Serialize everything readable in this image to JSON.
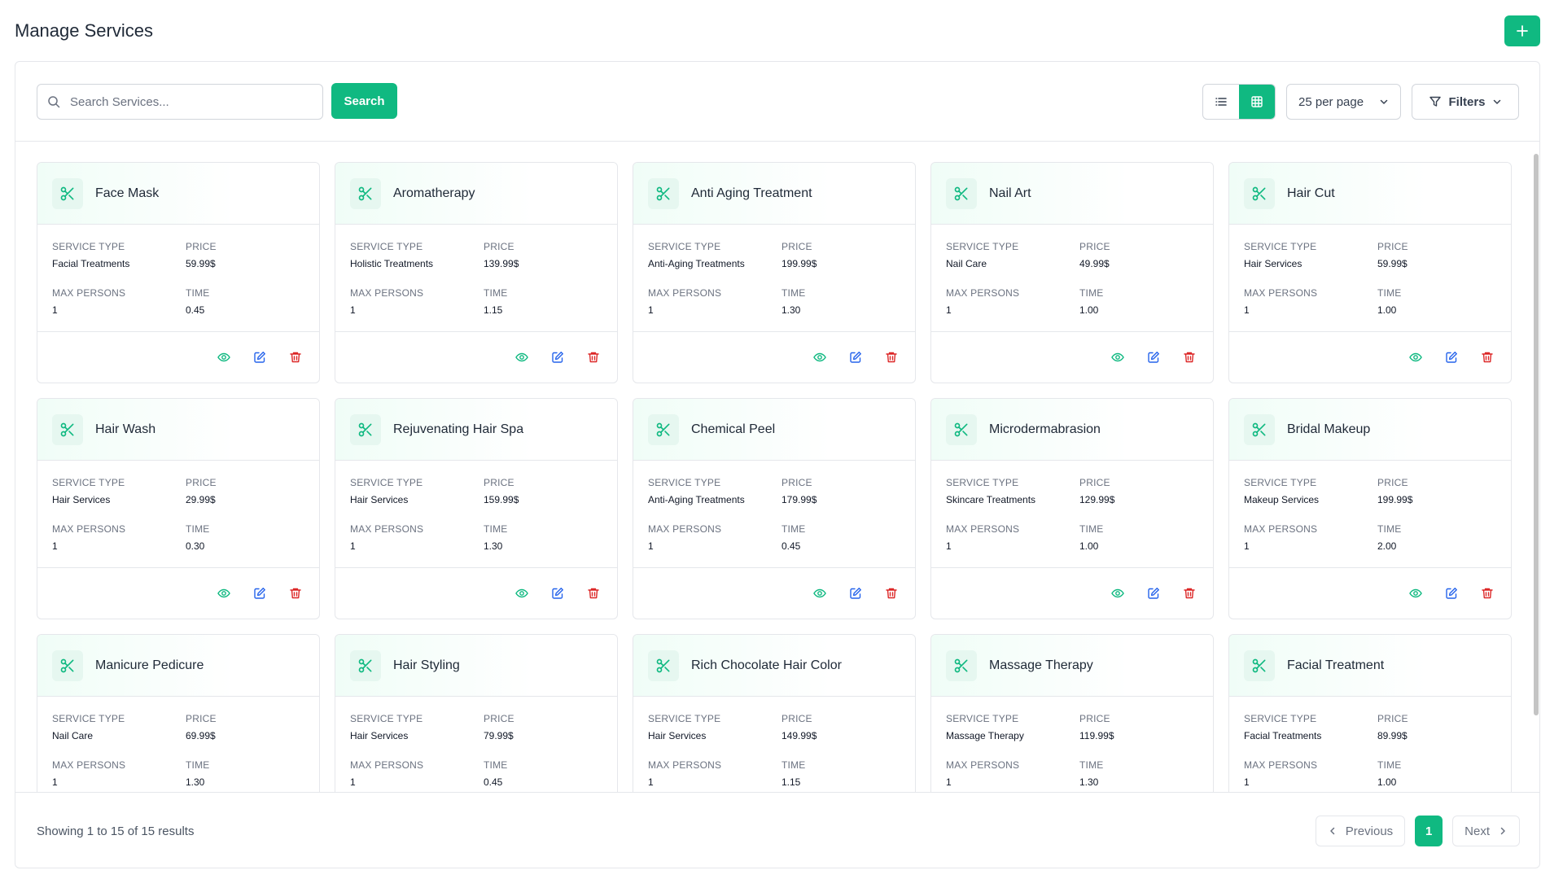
{
  "page": {
    "title": "Manage Services",
    "add_icon": "plus-icon"
  },
  "toolbar": {
    "search_placeholder": "Search Services...",
    "search_value": "",
    "search_button": "Search",
    "view_mode": "grid",
    "per_page": "25 per page",
    "filters_label": "Filters"
  },
  "labels": {
    "service_type": "SERVICE TYPE",
    "price": "PRICE",
    "max_persons": "MAX PERSONS",
    "time": "TIME"
  },
  "colors": {
    "accent": "#10b981",
    "view": "#10b981",
    "edit": "#2563eb",
    "delete": "#dc2626"
  },
  "services": [
    {
      "name": "Face Mask",
      "service_type": "Facial Treatments",
      "price": "59.99$",
      "max_persons": "1",
      "time": "0.45"
    },
    {
      "name": "Aromatherapy",
      "service_type": "Holistic Treatments",
      "price": "139.99$",
      "max_persons": "1",
      "time": "1.15"
    },
    {
      "name": "Anti Aging Treatment",
      "service_type": "Anti-Aging Treatments",
      "price": "199.99$",
      "max_persons": "1",
      "time": "1.30"
    },
    {
      "name": "Nail Art",
      "service_type": "Nail Care",
      "price": "49.99$",
      "max_persons": "1",
      "time": "1.00"
    },
    {
      "name": "Hair Cut",
      "service_type": "Hair Services",
      "price": "59.99$",
      "max_persons": "1",
      "time": "1.00"
    },
    {
      "name": "Hair Wash",
      "service_type": "Hair Services",
      "price": "29.99$",
      "max_persons": "1",
      "time": "0.30"
    },
    {
      "name": "Rejuvenating Hair Spa",
      "service_type": "Hair Services",
      "price": "159.99$",
      "max_persons": "1",
      "time": "1.30"
    },
    {
      "name": "Chemical Peel",
      "service_type": "Anti-Aging Treatments",
      "price": "179.99$",
      "max_persons": "1",
      "time": "0.45"
    },
    {
      "name": "Microdermabrasion",
      "service_type": "Skincare Treatments",
      "price": "129.99$",
      "max_persons": "1",
      "time": "1.00"
    },
    {
      "name": "Bridal Makeup",
      "service_type": "Makeup Services",
      "price": "199.99$",
      "max_persons": "1",
      "time": "2.00"
    },
    {
      "name": "Manicure Pedicure",
      "service_type": "Nail Care",
      "price": "69.99$",
      "max_persons": "1",
      "time": "1.30"
    },
    {
      "name": "Hair Styling",
      "service_type": "Hair Services",
      "price": "79.99$",
      "max_persons": "1",
      "time": "0.45"
    },
    {
      "name": "Rich Chocolate Hair Color",
      "service_type": "Hair Services",
      "price": "149.99$",
      "max_persons": "1",
      "time": "1.15"
    },
    {
      "name": "Massage Therapy",
      "service_type": "Massage Therapy",
      "price": "119.99$",
      "max_persons": "1",
      "time": "1.30"
    },
    {
      "name": "Facial Treatment",
      "service_type": "Facial Treatments",
      "price": "89.99$",
      "max_persons": "1",
      "time": "1.00"
    }
  ],
  "pagination": {
    "summary": "Showing 1 to 15 of 15 results",
    "previous": "Previous",
    "current_page": "1",
    "next": "Next"
  }
}
